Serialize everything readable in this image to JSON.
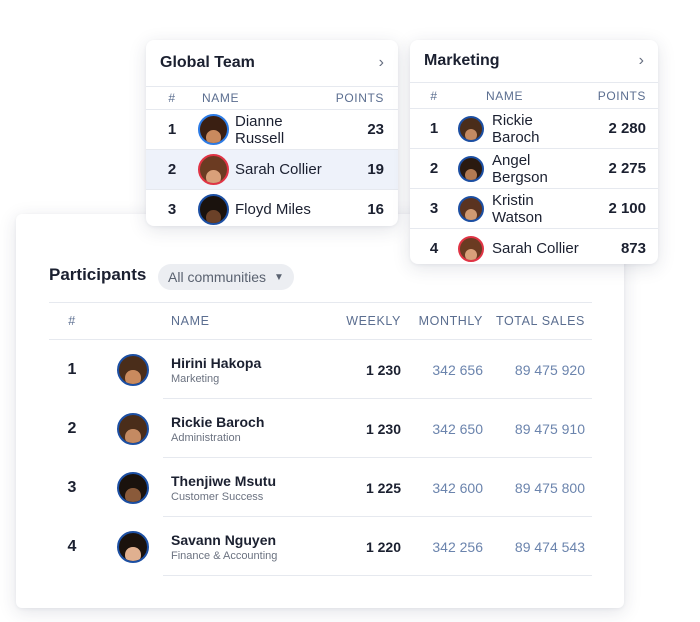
{
  "global_team": {
    "title": "Global Team",
    "columns": {
      "rank": "#",
      "name": "NAME",
      "points": "POINTS"
    },
    "rows": [
      {
        "rank": "1",
        "name": "Dianne Russell",
        "points": "23",
        "ring": "blue",
        "skin": "#c98a5e",
        "hair": "#3a1f12",
        "highlight": false
      },
      {
        "rank": "2",
        "name": "Sarah Collier",
        "points": "19",
        "ring": "red",
        "skin": "#d9a07a",
        "hair": "#6b3b22",
        "highlight": true
      },
      {
        "rank": "3",
        "name": "Floyd Miles",
        "points": "16",
        "ring": "navy",
        "skin": "#6b4128",
        "hair": "#1a120d",
        "highlight": false
      }
    ]
  },
  "marketing": {
    "title": "Marketing",
    "columns": {
      "rank": "#",
      "name": "NAME",
      "points": "POINTS"
    },
    "rows": [
      {
        "rank": "1",
        "name": "Rickie Baroch",
        "points": "2 280",
        "ring": "navy",
        "skin": "#c48a62",
        "hair": "#4a2d1a"
      },
      {
        "rank": "2",
        "name": "Angel Bergson",
        "points": "2 275",
        "ring": "navy",
        "skin": "#b27a52",
        "hair": "#2a1a10"
      },
      {
        "rank": "3",
        "name": "Kristin Watson",
        "points": "2 100",
        "ring": "navy",
        "skin": "#d19a72",
        "hair": "#5a3320"
      },
      {
        "rank": "4",
        "name": "Sarah Collier",
        "points": "873",
        "ring": "red",
        "skin": "#d9a07a",
        "hair": "#6b3b22"
      }
    ]
  },
  "participants": {
    "title": "Participants",
    "filter": "All communities",
    "columns": {
      "rank": "#",
      "name": "NAME",
      "weekly": "WEEKLY",
      "monthly": "MONTHLY",
      "total": "TOTAL SALES"
    },
    "rows": [
      {
        "rank": "1",
        "name": "Hirini Hakopa",
        "dept": "Marketing",
        "weekly": "1 230",
        "monthly": "342 656",
        "total": "89 475 920",
        "skin": "#c98a5e",
        "hair": "#4a2d1a"
      },
      {
        "rank": "2",
        "name": "Rickie Baroch",
        "dept": "Administration",
        "weekly": "1 230",
        "monthly": "342 650",
        "total": "89 475 910",
        "skin": "#c48a62",
        "hair": "#4a2d1a"
      },
      {
        "rank": "3",
        "name": "Thenjiwe Msutu",
        "dept": "Customer Success",
        "weekly": "1 225",
        "monthly": "342 600",
        "total": "89 475 800",
        "skin": "#8a5a3a",
        "hair": "#1a120d"
      },
      {
        "rank": "4",
        "name": "Savann Nguyen",
        "dept": "Finance & Accounting",
        "weekly": "1 220",
        "monthly": "342 256",
        "total": "89 474 543",
        "skin": "#e0b090",
        "hair": "#1a120d"
      }
    ]
  }
}
